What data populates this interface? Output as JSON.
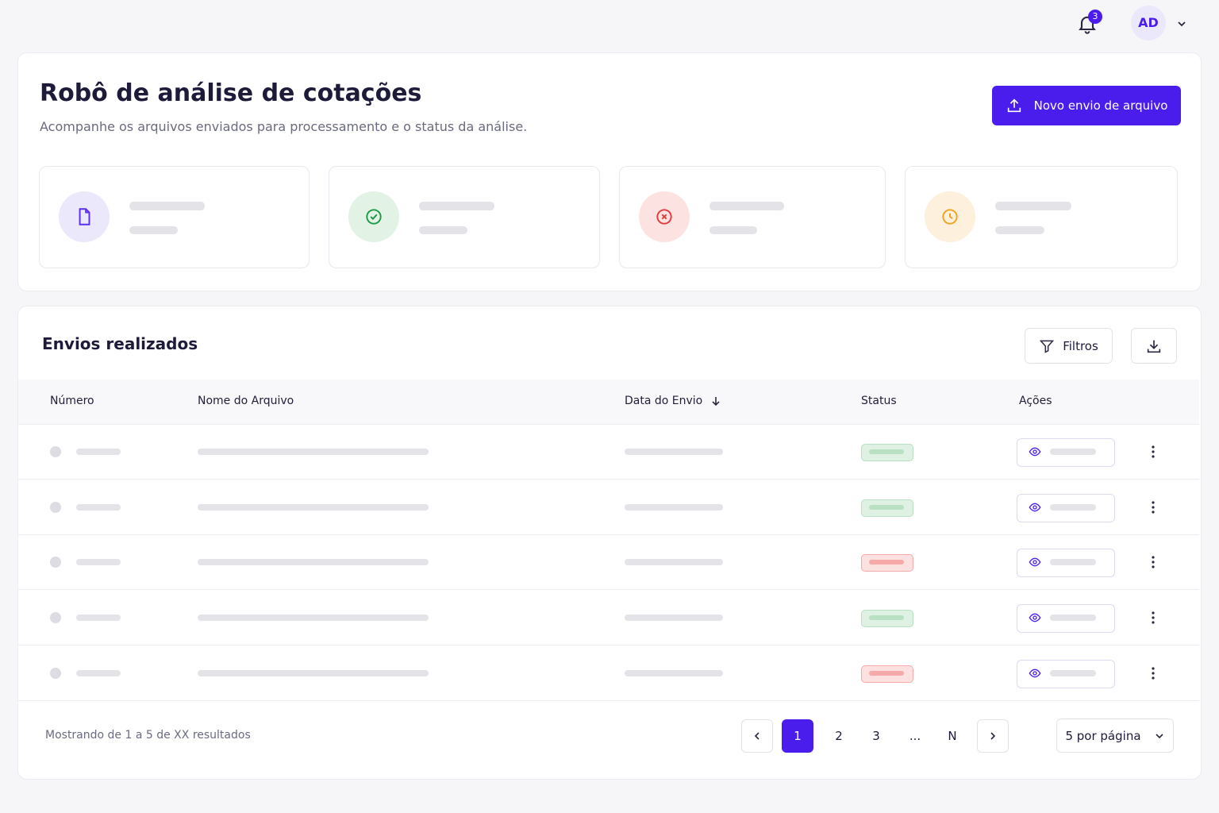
{
  "topbar": {
    "notification_count": "3",
    "avatar": "AD"
  },
  "header": {
    "title": "Robô de análise de cotações",
    "subtitle": "Acompanhe os arquivos enviados para processamento e o status da análise.",
    "button": "Novo envio de arquivo"
  },
  "table": {
    "title": "Envios realizados",
    "filter_button": "Filtros",
    "columns": [
      "Número",
      "Nome do Arquivo",
      "Data do Envio",
      "Status",
      "Ações"
    ]
  },
  "footer": {
    "summary": "Mostrando de 1 a 5 de XX resultados",
    "pages": [
      "1",
      "2",
      "3",
      "...",
      "N"
    ],
    "page_size": "5 por página"
  }
}
